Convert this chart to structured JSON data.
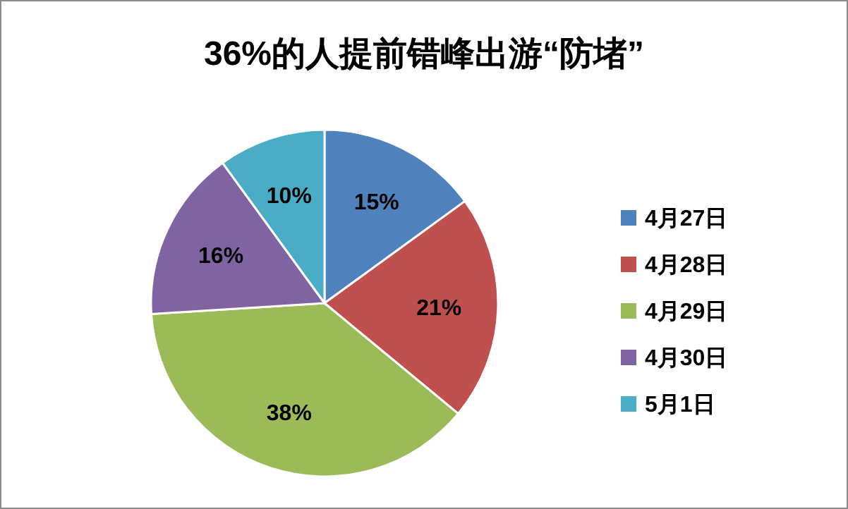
{
  "chart_data": {
    "type": "pie",
    "title": "36%的人提前错峰出游“防堵”",
    "categories": [
      "4月27日",
      "4月28日",
      "4月29日",
      "4月30日",
      "5月1日"
    ],
    "values": [
      15,
      21,
      38,
      16,
      10
    ],
    "colors": [
      "#4f81bd",
      "#c0504d",
      "#9bbb59",
      "#8064a2",
      "#4bacc6"
    ],
    "value_labels": [
      "15%",
      "21%",
      "38%",
      "16%",
      "10%"
    ],
    "legend": "right"
  }
}
